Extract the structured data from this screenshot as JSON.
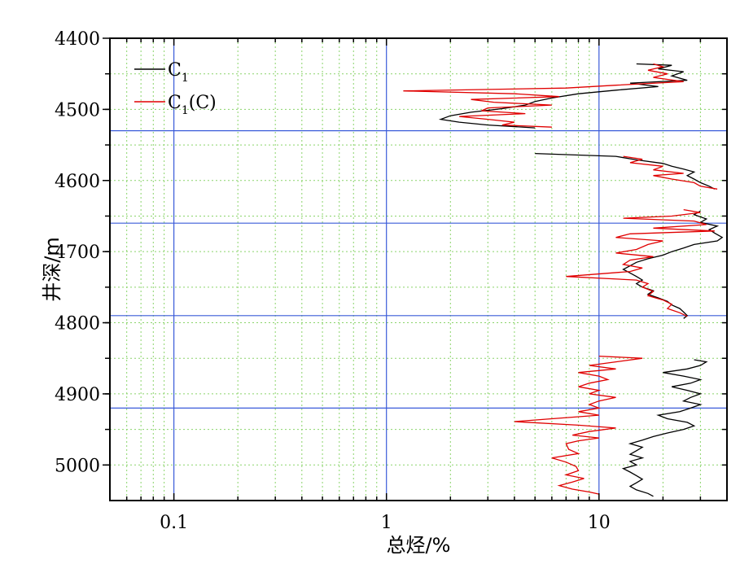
{
  "chart_data": {
    "type": "line",
    "xlabel": "总烃/%",
    "ylabel": "井深/m",
    "x_scale": "log",
    "xlim": [
      0.05,
      40
    ],
    "ylim": [
      5050,
      4400
    ],
    "x_ticks": [
      {
        "value": 0.1,
        "label": "0.1"
      },
      {
        "value": 1,
        "label": "1"
      },
      {
        "value": 10,
        "label": "10"
      }
    ],
    "y_ticks": [
      {
        "value": 4400,
        "label": "4400"
      },
      {
        "value": 4500,
        "label": "4500"
      },
      {
        "value": 4600,
        "label": "4600"
      },
      {
        "value": 4700,
        "label": "4700"
      },
      {
        "value": 4800,
        "label": "4800"
      },
      {
        "value": 4900,
        "label": "4900"
      },
      {
        "value": 5000,
        "label": "5000"
      }
    ],
    "boundary_depths": [
      4530,
      4660,
      4790,
      4920
    ],
    "grid": true,
    "legend_position": "top-left",
    "series": [
      {
        "name": "C1",
        "legend_main": "C",
        "legend_sub": "1",
        "legend_suffix": "",
        "color": "#000000",
        "points": [
          [
            15,
            4436
          ],
          [
            22,
            4438
          ],
          [
            19,
            4443
          ],
          [
            25,
            4447
          ],
          [
            22,
            4453
          ],
          [
            26,
            4459
          ],
          [
            14,
            4463
          ],
          [
            19,
            4468
          ],
          [
            12,
            4473
          ],
          [
            8,
            4478
          ],
          [
            6,
            4484
          ],
          [
            5,
            4489
          ],
          [
            4.5,
            4494
          ],
          [
            3.5,
            4499
          ],
          [
            2.5,
            4504
          ],
          [
            2,
            4509
          ],
          [
            1.8,
            4514
          ],
          [
            2.2,
            4518
          ],
          [
            3,
            4522
          ],
          [
            5,
            4526
          ],
          [
            5,
            4562
          ],
          [
            12,
            4566
          ],
          [
            15,
            4571
          ],
          [
            20,
            4576
          ],
          [
            22,
            4580
          ],
          [
            25,
            4584
          ],
          [
            28,
            4588
          ],
          [
            26,
            4593
          ],
          [
            28,
            4598
          ],
          [
            30,
            4603
          ],
          [
            33,
            4608
          ],
          [
            35,
            4612
          ],
          [
            30,
            4643
          ],
          [
            28,
            4648
          ],
          [
            32,
            4654
          ],
          [
            30,
            4659
          ],
          [
            36,
            4664
          ],
          [
            33,
            4669
          ],
          [
            35,
            4674
          ],
          [
            38,
            4680
          ],
          [
            36,
            4685
          ],
          [
            28,
            4690
          ],
          [
            25,
            4695
          ],
          [
            22,
            4700
          ],
          [
            20,
            4705
          ],
          [
            17,
            4710
          ],
          [
            15,
            4715
          ],
          [
            14,
            4720
          ],
          [
            13,
            4725
          ],
          [
            14,
            4730
          ],
          [
            15,
            4735
          ],
          [
            16,
            4740
          ],
          [
            15,
            4745
          ],
          [
            16,
            4750
          ],
          [
            18,
            4755
          ],
          [
            17,
            4760
          ],
          [
            19,
            4765
          ],
          [
            21,
            4770
          ],
          [
            22,
            4775
          ],
          [
            24,
            4780
          ],
          [
            25,
            4785
          ],
          [
            26,
            4790
          ],
          [
            25,
            4794
          ],
          [
            28,
            4852
          ],
          [
            32,
            4855
          ],
          [
            30,
            4860
          ],
          [
            26,
            4865
          ],
          [
            20,
            4870
          ],
          [
            25,
            4875
          ],
          [
            30,
            4880
          ],
          [
            27,
            4885
          ],
          [
            22,
            4890
          ],
          [
            26,
            4895
          ],
          [
            30,
            4900
          ],
          [
            27,
            4905
          ],
          [
            25,
            4910
          ],
          [
            30,
            4915
          ],
          [
            27,
            4920
          ],
          [
            24,
            4925
          ],
          [
            19,
            4930
          ],
          [
            21,
            4935
          ],
          [
            26,
            4940
          ],
          [
            28,
            4945
          ],
          [
            25,
            4950
          ],
          [
            21,
            4955
          ],
          [
            18,
            4960
          ],
          [
            16,
            4965
          ],
          [
            14,
            4970
          ],
          [
            16,
            4975
          ],
          [
            15,
            4980
          ],
          [
            14,
            4985
          ],
          [
            16,
            4990
          ],
          [
            14,
            4995
          ],
          [
            15,
            5000
          ],
          [
            13,
            5005
          ],
          [
            14,
            5010
          ],
          [
            15,
            5015
          ],
          [
            16,
            5020
          ],
          [
            15,
            5025
          ],
          [
            14,
            5030
          ],
          [
            15,
            5035
          ],
          [
            17,
            5040
          ],
          [
            18,
            5044
          ]
        ]
      },
      {
        "name": "C1(C)",
        "legend_main": "C",
        "legend_sub": "1",
        "legend_suffix": "(C)",
        "color": "#e00000",
        "points": [
          [
            18,
            4436
          ],
          [
            20,
            4440
          ],
          [
            17,
            4445
          ],
          [
            21,
            4450
          ],
          [
            18,
            4455
          ],
          [
            25,
            4461
          ],
          [
            12,
            4466
          ],
          [
            7,
            4470
          ],
          [
            1.2,
            4474
          ],
          [
            4,
            4478
          ],
          [
            6.5,
            4482
          ],
          [
            2.5,
            4486
          ],
          [
            3.2,
            4490
          ],
          [
            6,
            4494
          ],
          [
            3,
            4498
          ],
          [
            2.8,
            4502
          ],
          [
            4.5,
            4506
          ],
          [
            2.2,
            4510
          ],
          [
            3,
            4514
          ],
          [
            4,
            4518
          ],
          [
            3.5,
            4522
          ],
          [
            6,
            4525
          ],
          [
            13,
            4566
          ],
          [
            16,
            4570
          ],
          [
            14,
            4575
          ],
          [
            20,
            4580
          ],
          [
            18,
            4585
          ],
          [
            25,
            4590
          ],
          [
            18,
            4593
          ],
          [
            22,
            4598
          ],
          [
            28,
            4603
          ],
          [
            30,
            4608
          ],
          [
            36,
            4612
          ],
          [
            25,
            4641
          ],
          [
            30,
            4645
          ],
          [
            22,
            4650
          ],
          [
            13,
            4653
          ],
          [
            28,
            4657
          ],
          [
            32,
            4662
          ],
          [
            18,
            4667
          ],
          [
            35,
            4671
          ],
          [
            14,
            4675
          ],
          [
            12,
            4680
          ],
          [
            20,
            4685
          ],
          [
            17,
            4690
          ],
          [
            15,
            4697
          ],
          [
            12,
            4702
          ],
          [
            18,
            4707
          ],
          [
            14,
            4712
          ],
          [
            13,
            4718
          ],
          [
            16,
            4723
          ],
          [
            14,
            4728
          ],
          [
            7,
            4735
          ],
          [
            15,
            4740
          ],
          [
            17,
            4745
          ],
          [
            16,
            4750
          ],
          [
            18,
            4756
          ],
          [
            17,
            4762
          ],
          [
            20,
            4768
          ],
          [
            22,
            4774
          ],
          [
            21,
            4780
          ],
          [
            24,
            4786
          ],
          [
            26,
            4791
          ],
          [
            10,
            4847
          ],
          [
            16,
            4850
          ],
          [
            12,
            4855
          ],
          [
            9,
            4860
          ],
          [
            12,
            4865
          ],
          [
            8,
            4870
          ],
          [
            10,
            4875
          ],
          [
            11,
            4880
          ],
          [
            9,
            4885
          ],
          [
            8,
            4890
          ],
          [
            10,
            4895
          ],
          [
            9,
            4900
          ],
          [
            12,
            4905
          ],
          [
            10,
            4910
          ],
          [
            9,
            4915
          ],
          [
            10,
            4920
          ],
          [
            8,
            4925
          ],
          [
            10,
            4930
          ],
          [
            4,
            4939
          ],
          [
            8,
            4944
          ],
          [
            12,
            4948
          ],
          [
            9,
            4953
          ],
          [
            7.5,
            4958
          ],
          [
            10,
            4962
          ],
          [
            8,
            4966
          ],
          [
            7,
            4970
          ],
          [
            7.2,
            4978
          ],
          [
            8,
            4984
          ],
          [
            6,
            4990
          ],
          [
            7,
            4996
          ],
          [
            7.8,
            5002
          ],
          [
            8,
            5008
          ],
          [
            7,
            5014
          ],
          [
            8.5,
            5019
          ],
          [
            7.5,
            5024
          ],
          [
            6.5,
            5029
          ],
          [
            7.5,
            5034
          ],
          [
            9,
            5038
          ],
          [
            10,
            5041
          ]
        ]
      }
    ]
  }
}
